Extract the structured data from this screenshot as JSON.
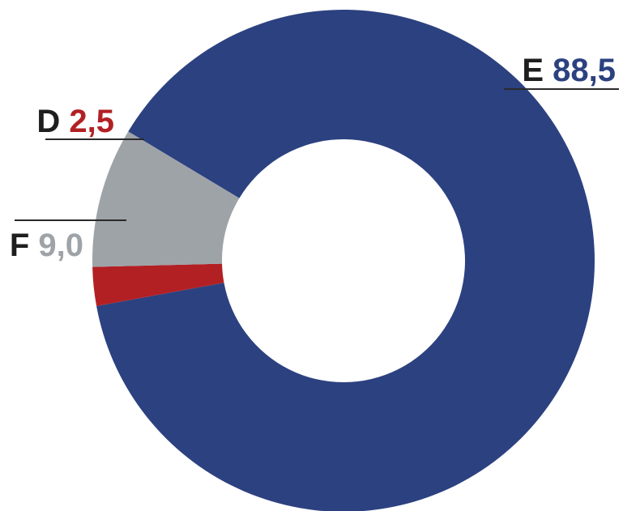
{
  "chart_data": {
    "type": "pie",
    "donut": true,
    "slices": [
      {
        "letter": "E",
        "value": 88.5,
        "value_label": "88,5",
        "color": "#2c4180"
      },
      {
        "letter": "D",
        "value": 2.5,
        "value_label": "2,5",
        "color": "#b22024"
      },
      {
        "letter": "F",
        "value": 9.0,
        "value_label": "9,0",
        "color": "#9ea3a8"
      }
    ],
    "letter_color": "#1e1e1e",
    "leader_color": "#2a2a2a"
  }
}
